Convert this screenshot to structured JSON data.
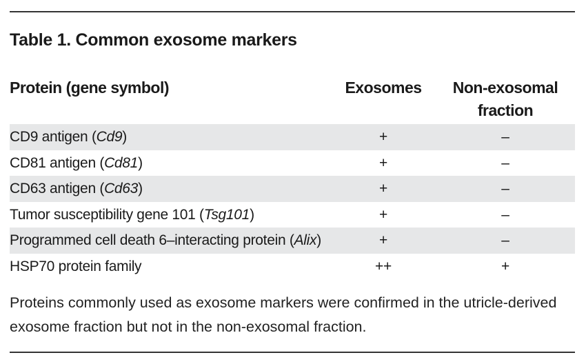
{
  "table": {
    "title": "Table 1. Common exosome markers",
    "headers": {
      "protein": "Protein (gene symbol)",
      "exosomes": "Exosomes",
      "non_exosomal_line1": "Non-exosomal",
      "non_exosomal_line2": "fraction"
    },
    "rows": [
      {
        "name_prefix": "CD9 antigen (",
        "gene": "Cd9",
        "name_suffix": ")",
        "exosomes": "+",
        "non_exosomal": "–"
      },
      {
        "name_prefix": "CD81 antigen (",
        "gene": "Cd81",
        "name_suffix": ")",
        "exosomes": "+",
        "non_exosomal": "–"
      },
      {
        "name_prefix": "CD63 antigen (",
        "gene": "Cd63",
        "name_suffix": ")",
        "exosomes": "+",
        "non_exosomal": "–"
      },
      {
        "name_prefix": "Tumor susceptibility gene 101 (",
        "gene": "Tsg101",
        "name_suffix": ")",
        "exosomes": "+",
        "non_exosomal": "–"
      },
      {
        "name_prefix": "Programmed cell death 6–interacting protein (",
        "gene": "Alix",
        "name_suffix": ")",
        "exosomes": "+",
        "non_exosomal": "–"
      },
      {
        "name_prefix": "HSP70 protein family",
        "gene": "",
        "name_suffix": "",
        "exosomes": "++",
        "non_exosomal": "+"
      }
    ],
    "footnote": "Proteins commonly used as exosome markers were confirmed in the utricle-derived exosome fraction but not in the non-exosomal fraction."
  },
  "colors": {
    "row_shading": "#e6e7e8",
    "rule": "#333333",
    "text": "#1a1a1a"
  }
}
